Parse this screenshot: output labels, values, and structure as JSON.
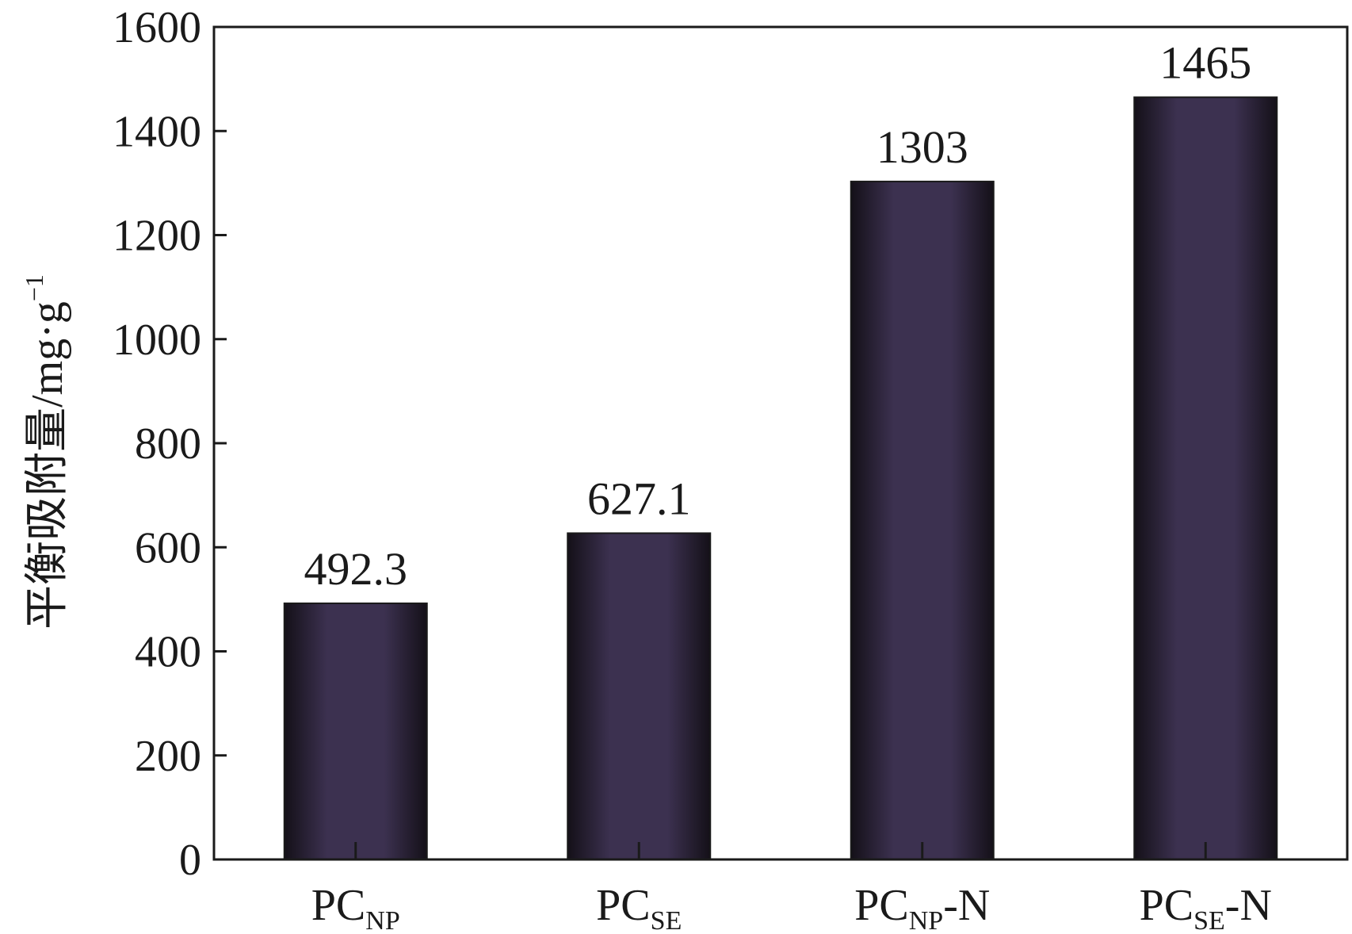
{
  "chart_data": {
    "type": "bar",
    "categories": [
      {
        "base": "PC",
        "sub": "NP",
        "suffix": ""
      },
      {
        "base": "PC",
        "sub": "SE",
        "suffix": ""
      },
      {
        "base": "PC",
        "sub": "NP",
        "suffix": "-N"
      },
      {
        "base": "PC",
        "sub": "SE",
        "suffix": "-N"
      }
    ],
    "values": [
      492.3,
      627.1,
      1303,
      1465
    ],
    "value_labels": [
      "492.3",
      "627.1",
      "1303",
      "1465"
    ],
    "ylabel": {
      "main": "平衡吸附量/mg·g",
      "sup": "−1"
    },
    "ylim": [
      0,
      1600
    ],
    "yticks": [
      0,
      200,
      400,
      600,
      800,
      1000,
      1200,
      1400,
      1600
    ],
    "grid": false,
    "bar_color": "#3a2f4a"
  }
}
